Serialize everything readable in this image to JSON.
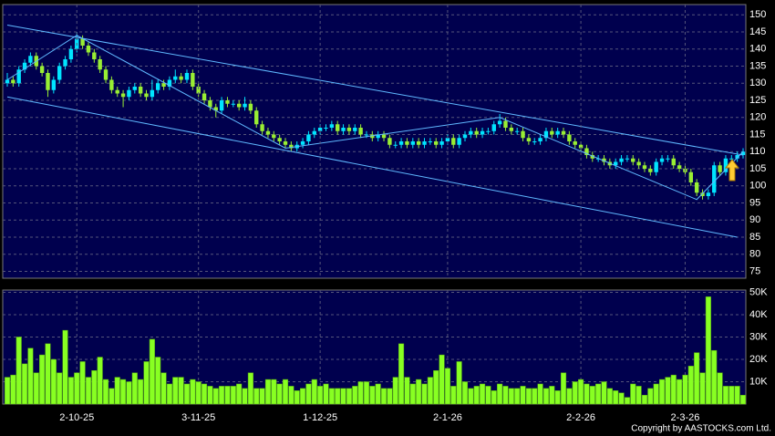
{
  "chart_data": [
    {
      "type": "candlestick",
      "up_color": "#00e5ff",
      "down_color": "#99ee33",
      "grid": true,
      "ylim": [
        73,
        153
      ],
      "yticks": [
        75,
        80,
        85,
        90,
        95,
        100,
        105,
        110,
        115,
        120,
        125,
        130,
        135,
        140,
        145,
        150
      ],
      "candles": [
        [
          130,
          133,
          129,
          131
        ],
        [
          131,
          132,
          129,
          130
        ],
        [
          130,
          135,
          129,
          134
        ],
        [
          134,
          137,
          133,
          136
        ],
        [
          136,
          139,
          135,
          138
        ],
        [
          138,
          139,
          134,
          135
        ],
        [
          135,
          136,
          132,
          133
        ],
        [
          133,
          134,
          126,
          128
        ],
        [
          128,
          132,
          127,
          131
        ],
        [
          131,
          136,
          130,
          135
        ],
        [
          135,
          138,
          134,
          137
        ],
        [
          137,
          141,
          136,
          140
        ],
        [
          140,
          145,
          139,
          143
        ],
        [
          143,
          144,
          140,
          141
        ],
        [
          141,
          142,
          138,
          139
        ],
        [
          139,
          140,
          136,
          137
        ],
        [
          137,
          138,
          133,
          134
        ],
        [
          134,
          135,
          130,
          131
        ],
        [
          131,
          132,
          127,
          128
        ],
        [
          128,
          129,
          126,
          127
        ],
        [
          127,
          128,
          123,
          126
        ],
        [
          126,
          129,
          125,
          128
        ],
        [
          128,
          130,
          127,
          129
        ],
        [
          129,
          130,
          126,
          127
        ],
        [
          127,
          128,
          125,
          126
        ],
        [
          126,
          131,
          125,
          128
        ],
        [
          128,
          131,
          127,
          130
        ],
        [
          130,
          131,
          128,
          129
        ],
        [
          129,
          132,
          128,
          131
        ],
        [
          131,
          134,
          130,
          132
        ],
        [
          132,
          133,
          130,
          131
        ],
        [
          131,
          134,
          130,
          133
        ],
        [
          133,
          134,
          128,
          129
        ],
        [
          129,
          130,
          126,
          127
        ],
        [
          127,
          128,
          124,
          125
        ],
        [
          125,
          126,
          122,
          123
        ],
        [
          123,
          124,
          120,
          122
        ],
        [
          122,
          126,
          121,
          125
        ],
        [
          125,
          126,
          123,
          124
        ],
        [
          124,
          125,
          123,
          124
        ],
        [
          124,
          125,
          122,
          123
        ],
        [
          123,
          126,
          122,
          124
        ],
        [
          124,
          125,
          121,
          122
        ],
        [
          122,
          123,
          117,
          118
        ],
        [
          118,
          119,
          115,
          116
        ],
        [
          116,
          117,
          114,
          115
        ],
        [
          115,
          116,
          113,
          114
        ],
        [
          114,
          115,
          112,
          113
        ],
        [
          113,
          114,
          111,
          112
        ],
        [
          112,
          113,
          110,
          111
        ],
        [
          111,
          113,
          110,
          112
        ],
        [
          112,
          114,
          111,
          113
        ],
        [
          113,
          116,
          112,
          115
        ],
        [
          115,
          117,
          114,
          116
        ],
        [
          116,
          118,
          115,
          117
        ],
        [
          117,
          118,
          116,
          117
        ],
        [
          117,
          119,
          116,
          118
        ],
        [
          118,
          119,
          115,
          116
        ],
        [
          116,
          118,
          115,
          117
        ],
        [
          117,
          118,
          115,
          116
        ],
        [
          116,
          118,
          115,
          117
        ],
        [
          117,
          118,
          114,
          115
        ],
        [
          115,
          116,
          114,
          115
        ],
        [
          115,
          116,
          113,
          114
        ],
        [
          114,
          116,
          113,
          115
        ],
        [
          115,
          116,
          113,
          114
        ],
        [
          114,
          115,
          111,
          112
        ],
        [
          112,
          113,
          111,
          112
        ],
        [
          112,
          114,
          111,
          113
        ],
        [
          113,
          114,
          111,
          112
        ],
        [
          112,
          114,
          111,
          113
        ],
        [
          113,
          114,
          111,
          112
        ],
        [
          112,
          114,
          111,
          113
        ],
        [
          113,
          114,
          112,
          113
        ],
        [
          113,
          114,
          111,
          112
        ],
        [
          112,
          114,
          111,
          113
        ],
        [
          113,
          115,
          112,
          114
        ],
        [
          114,
          115,
          111,
          112
        ],
        [
          112,
          115,
          111,
          114
        ],
        [
          114,
          116,
          113,
          115
        ],
        [
          115,
          117,
          114,
          116
        ],
        [
          116,
          117,
          114,
          115
        ],
        [
          115,
          117,
          114,
          116
        ],
        [
          116,
          117,
          115,
          116
        ],
        [
          116,
          119,
          115,
          118
        ],
        [
          118,
          121,
          117,
          119
        ],
        [
          119,
          120,
          116,
          117
        ],
        [
          117,
          118,
          115,
          116
        ],
        [
          116,
          117,
          115,
          116
        ],
        [
          116,
          117,
          113,
          114
        ],
        [
          114,
          115,
          112,
          113
        ],
        [
          113,
          114,
          112,
          113
        ],
        [
          113,
          115,
          112,
          114
        ],
        [
          114,
          117,
          113,
          116
        ],
        [
          116,
          117,
          114,
          115
        ],
        [
          115,
          117,
          114,
          116
        ],
        [
          116,
          117,
          114,
          115
        ],
        [
          115,
          116,
          112,
          113
        ],
        [
          113,
          114,
          111,
          112
        ],
        [
          112,
          113,
          110,
          111
        ],
        [
          111,
          112,
          108,
          109
        ],
        [
          109,
          110,
          107,
          108
        ],
        [
          108,
          109,
          107,
          108
        ],
        [
          108,
          109,
          106,
          107
        ],
        [
          107,
          108,
          105,
          106
        ],
        [
          106,
          108,
          105,
          107
        ],
        [
          107,
          109,
          106,
          108
        ],
        [
          108,
          109,
          107,
          108
        ],
        [
          108,
          109,
          106,
          107
        ],
        [
          107,
          108,
          105,
          106
        ],
        [
          106,
          107,
          104,
          105
        ],
        [
          105,
          106,
          103,
          104
        ],
        [
          104,
          108,
          103,
          107
        ],
        [
          107,
          109,
          106,
          108
        ],
        [
          108,
          109,
          107,
          108
        ],
        [
          108,
          109,
          105,
          106
        ],
        [
          106,
          107,
          104,
          105
        ],
        [
          105,
          106,
          103,
          104
        ],
        [
          104,
          105,
          100,
          101
        ],
        [
          101,
          102,
          97,
          98
        ],
        [
          98,
          99,
          96,
          97
        ],
        [
          97,
          99,
          96,
          98
        ],
        [
          98,
          107,
          97,
          106
        ],
        [
          106,
          107,
          103,
          104
        ],
        [
          104,
          109,
          103,
          108
        ],
        [
          108,
          109,
          107,
          108
        ],
        [
          108,
          110,
          107,
          109
        ],
        [
          109,
          111,
          108,
          110
        ]
      ],
      "trendlines": [
        {
          "color": "#5fb8ff",
          "points": [
            [
              0,
              147
            ],
            [
              127,
              109
            ]
          ]
        },
        {
          "color": "#5fb8ff",
          "points": [
            [
              0,
              126
            ],
            [
              126,
              85
            ]
          ]
        },
        {
          "color": "#5fb8ff",
          "points": [
            [
              0,
              131
            ],
            [
              12,
              144
            ],
            [
              48,
              111
            ],
            [
              85,
              120
            ],
            [
              119,
              96
            ],
            [
              127,
              110
            ]
          ]
        }
      ]
    },
    {
      "type": "bar",
      "color": "#88ff22",
      "grid": true,
      "ylim": [
        0,
        51000
      ],
      "yticks": [
        {
          "value": 10000,
          "label": "10K"
        },
        {
          "value": 20000,
          "label": "20K"
        },
        {
          "value": 30000,
          "label": "30K"
        },
        {
          "value": 40000,
          "label": "40K"
        },
        {
          "value": 50000,
          "label": "50K"
        }
      ],
      "categories": [
        null,
        null,
        null,
        null,
        null,
        null,
        null,
        null,
        null,
        null,
        null,
        null,
        "2-10-25",
        null,
        null,
        null,
        null,
        null,
        null,
        null,
        null,
        null,
        null,
        null,
        null,
        null,
        null,
        null,
        null,
        null,
        null,
        null,
        null,
        "3-11-25",
        null,
        null,
        null,
        null,
        null,
        null,
        null,
        null,
        null,
        null,
        null,
        null,
        null,
        null,
        null,
        null,
        null,
        null,
        null,
        null,
        "1-12-25",
        null,
        null,
        null,
        null,
        null,
        null,
        null,
        null,
        null,
        null,
        null,
        null,
        null,
        null,
        null,
        null,
        null,
        null,
        null,
        null,
        null,
        "2-1-26",
        null,
        null,
        null,
        null,
        null,
        null,
        null,
        null,
        null,
        null,
        null,
        null,
        null,
        null,
        null,
        null,
        null,
        null,
        null,
        null,
        null,
        null,
        "2-2-26",
        null,
        null,
        null,
        null,
        null,
        null,
        null,
        null,
        null,
        null,
        null,
        null,
        null,
        null,
        null,
        null,
        null,
        "2-3-26",
        null,
        null,
        null,
        null,
        null,
        null,
        null,
        null,
        null,
        null
      ],
      "values": [
        12000,
        13000,
        30000,
        18000,
        25000,
        14000,
        22000,
        27000,
        20000,
        14000,
        33000,
        12000,
        14000,
        19000,
        12000,
        15000,
        21000,
        11000,
        7000,
        12000,
        11000,
        10000,
        14000,
        11000,
        19000,
        29000,
        21000,
        14000,
        9000,
        12000,
        12000,
        9000,
        11000,
        10000,
        9000,
        8000,
        7000,
        8000,
        8000,
        8000,
        9000,
        7000,
        14000,
        7000,
        7000,
        11000,
        11000,
        9000,
        11000,
        8000,
        6000,
        7000,
        9000,
        11000,
        8000,
        9000,
        7000,
        7000,
        7000,
        7000,
        8000,
        10000,
        10000,
        8000,
        9000,
        7000,
        7000,
        12000,
        27000,
        12000,
        9000,
        11000,
        9000,
        12000,
        15000,
        22000,
        16000,
        8000,
        19000,
        10000,
        7000,
        8000,
        9000,
        8000,
        6000,
        9000,
        8000,
        7000,
        7000,
        8000,
        7000,
        7000,
        9000,
        7000,
        8000,
        6000,
        14000,
        7000,
        10000,
        11000,
        9000,
        8000,
        9000,
        10000,
        7000,
        6000,
        5000,
        3000,
        9000,
        8000,
        4000,
        7000,
        9000,
        11000,
        12000,
        13000,
        11000,
        13000,
        17000,
        23000,
        14000,
        48000,
        24000,
        14000,
        8000,
        8000,
        8000,
        4000
      ]
    }
  ],
  "copyright": "Copyright by AASTOCKS.com Ltd."
}
